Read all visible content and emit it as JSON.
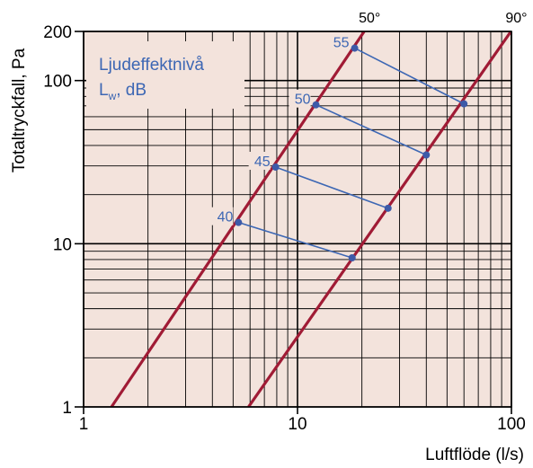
{
  "chart_data": {
    "type": "line",
    "x_scale": "log",
    "y_scale": "log",
    "xlim": [
      1,
      100
    ],
    "ylim": [
      1,
      200
    ],
    "xlabel": "Luftflöde (l/s)",
    "ylabel": "Totaltryckfall, Pa",
    "x_ticks": [
      1,
      10,
      100
    ],
    "x_tick_labels": [
      "1",
      "10",
      "100"
    ],
    "y_ticks": [
      1,
      10,
      100,
      200
    ],
    "y_tick_labels": [
      "1",
      "10",
      "100",
      "200"
    ],
    "grid": true,
    "legend": {
      "line1": "Ljudeffektnivå",
      "line2_main": "L",
      "line2_sub": "w",
      "line2_rest": ", dB"
    },
    "series": [
      {
        "name": "50°",
        "x": [
          1.35,
          20.5
        ],
        "y": [
          1,
          200
        ]
      },
      {
        "name": "90°",
        "x": [
          5.9,
          99.5
        ],
        "y": [
          1,
          200
        ]
      }
    ],
    "sound_levels": [
      {
        "label": "40",
        "from": [
          5.3,
          13.5
        ],
        "to": [
          18.0,
          8.2
        ]
      },
      {
        "label": "45",
        "from": [
          7.9,
          29.5
        ],
        "to": [
          26.5,
          16.5
        ]
      },
      {
        "label": "50",
        "from": [
          12.2,
          71
        ],
        "to": [
          40.0,
          35
        ]
      },
      {
        "label": "55",
        "from": [
          18.5,
          158
        ],
        "to": [
          60.0,
          72
        ]
      }
    ],
    "colors": {
      "plot_background": "#f3e3dc",
      "grid": "#000000",
      "curve": "#a01b35",
      "annotation": "#3d67b4",
      "marker": "#3d5aa8",
      "text": "#000000"
    }
  }
}
